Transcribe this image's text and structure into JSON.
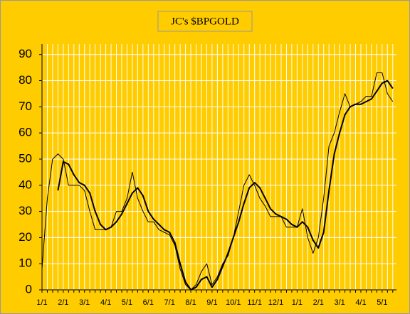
{
  "chart_data": {
    "type": "line",
    "title": "JC's $BPGOLD",
    "categories": [
      "1/1",
      null,
      null,
      null,
      "2/1",
      null,
      null,
      null,
      "3/1",
      null,
      null,
      null,
      "4/1",
      null,
      null,
      null,
      "5/1",
      null,
      null,
      null,
      "6/1",
      null,
      null,
      null,
      "7/1",
      null,
      null,
      null,
      "8/1",
      null,
      null,
      null,
      "9/1",
      null,
      null,
      null,
      "10/1",
      null,
      null,
      null,
      "11/1",
      null,
      null,
      null,
      "12/1",
      null,
      null,
      null,
      "1/1",
      null,
      null,
      null,
      "2/1",
      null,
      null,
      null,
      "3/1",
      null,
      null,
      null,
      "4/1",
      null,
      null,
      null,
      "5/1",
      null,
      null
    ],
    "series": [
      {
        "color": "#000000",
        "width": 1,
        "values": [
          8,
          35,
          50,
          52,
          50,
          40,
          40,
          40,
          38,
          30,
          23,
          23,
          23,
          24,
          30,
          30,
          35,
          45,
          35,
          30,
          26,
          26,
          23,
          22,
          21,
          17,
          8,
          2,
          0,
          2,
          7,
          10,
          2,
          5,
          10,
          13,
          20,
          30,
          40,
          44,
          40,
          35,
          32,
          28,
          28,
          28,
          24,
          24,
          24,
          31,
          20,
          14,
          20,
          35,
          55,
          60,
          68,
          75,
          70,
          71,
          72,
          74,
          74,
          83,
          83,
          75,
          72
        ]
      },
      {
        "color": "#000000",
        "width": 2,
        "values": [
          null,
          null,
          null,
          38,
          49,
          48,
          44,
          41,
          40,
          37,
          30,
          25,
          23,
          24,
          26,
          29,
          33,
          37,
          39,
          36,
          30,
          27,
          25,
          23,
          22,
          18,
          10,
          3,
          0,
          1,
          4,
          5,
          1,
          4,
          9,
          14,
          20,
          26,
          33,
          39,
          41,
          39,
          35,
          31,
          29,
          28,
          27,
          25,
          24,
          26,
          24,
          19,
          16,
          22,
          38,
          52,
          60,
          67,
          70,
          71,
          71,
          72,
          73,
          76,
          79,
          80,
          77
        ]
      }
    ],
    "ylim": [
      0,
      94
    ],
    "yticks": [
      0,
      10,
      20,
      30,
      40,
      50,
      60,
      70,
      80,
      90
    ],
    "grid": true,
    "background": "#ffcc00"
  }
}
